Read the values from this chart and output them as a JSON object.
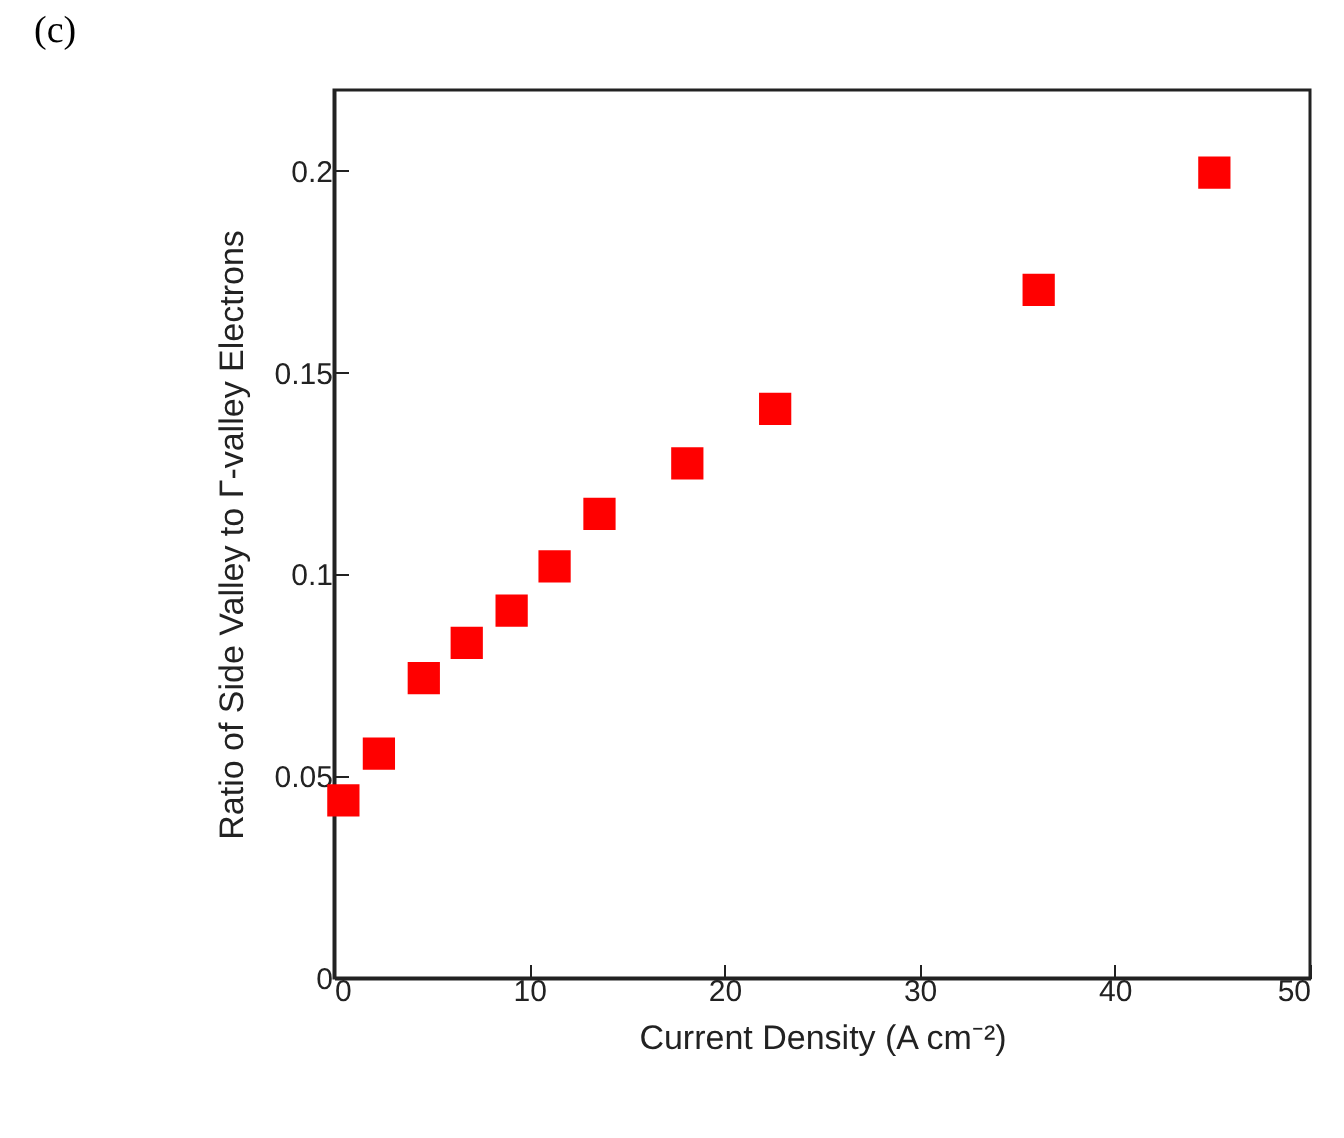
{
  "chart_data": {
    "type": "scatter",
    "xlabel": "Current Density (A cm⁻²)",
    "ylabel": "Ratio of Side Valley to Γ-valley Electrons",
    "annotations": [
      "(c)"
    ],
    "x": [
      0.48,
      2.3,
      4.6,
      6.8,
      9.1,
      11.3,
      13.6,
      18.1,
      22.6,
      36.1,
      45.1
    ],
    "series": [
      {
        "color": "#ff0000",
        "values": [
          0.044,
          0.0556,
          0.0743,
          0.083,
          0.091,
          0.102,
          0.115,
          0.1275,
          0.141,
          0.1705,
          0.1995
        ]
      }
    ],
    "xlim": [
      0,
      50
    ],
    "xticks": [
      0,
      10,
      20,
      30,
      40,
      50
    ],
    "ylim": [
      0,
      0.22
    ],
    "yticks": [
      0,
      0.05,
      0.1,
      0.15,
      0.2
    ],
    "marker": "square",
    "grid": false
  }
}
